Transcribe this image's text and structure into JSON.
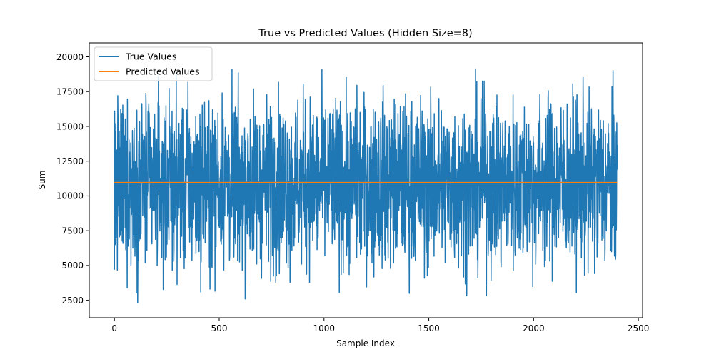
{
  "chart_data": {
    "type": "line",
    "title": "True vs Predicted Values (Hidden Size=8)",
    "xlabel": "Sample Index",
    "ylabel": "Sum",
    "xlim": [
      -120,
      2520
    ],
    "ylim": [
      1250,
      21000
    ],
    "xticks": [
      0,
      500,
      1000,
      1500,
      2000,
      2500
    ],
    "xtick_labels": [
      "0",
      "500",
      "1000",
      "1500",
      "2000",
      "2500"
    ],
    "yticks": [
      2500,
      5000,
      7500,
      10000,
      12500,
      15000,
      17500,
      20000
    ],
    "ytick_labels": [
      "2500",
      "5000",
      "7500",
      "10000",
      "12500",
      "15000",
      "17500",
      "20000"
    ],
    "grid": false,
    "legend": "top-left",
    "n_samples": 2400,
    "series": [
      {
        "name": "True Values",
        "color": "#1f77b4",
        "summary": {
          "x_start": 0,
          "x_end": 2399,
          "min": 2150,
          "max": 19800,
          "mean": 10900,
          "typical_low": 4000,
          "typical_high": 18000
        },
        "y_start": [
          4700,
          16100,
          9800,
          14600,
          6500,
          12000,
          8200,
          15200,
          7000,
          11300
        ]
      },
      {
        "name": "Predicted Values",
        "color": "#ff7f0e",
        "x": [
          0,
          2399
        ],
        "y": [
          10950,
          10950
        ]
      }
    ]
  }
}
